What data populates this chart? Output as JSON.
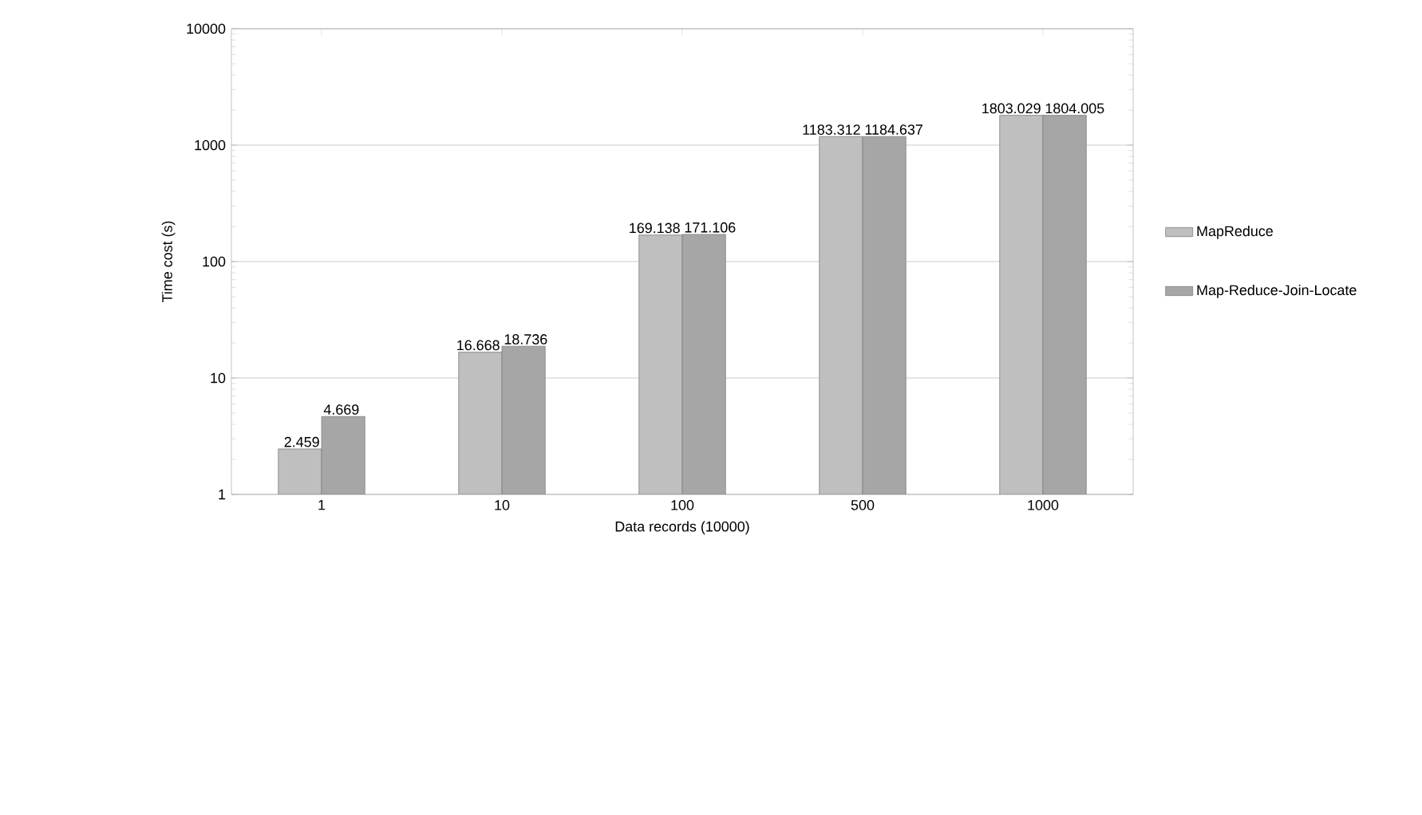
{
  "chart_data": {
    "type": "bar",
    "xlabel": "Data records (10000)",
    "ylabel": "Time cost (s)",
    "categories": [
      "1",
      "10",
      "100",
      "500",
      "1000"
    ],
    "series": [
      {
        "name": "MapReduce",
        "color": "#bfbfbf",
        "values": [
          2.459,
          16.668,
          169.138,
          1183.312,
          1803.029
        ],
        "value_labels": [
          "2.459",
          "16.668",
          "169.138",
          "1183.312",
          "1803.029"
        ]
      },
      {
        "name": "Map-Reduce-Join-Locate",
        "color": "#a6a6a6",
        "values": [
          4.669,
          18.736,
          171.106,
          1184.637,
          1804.005
        ],
        "value_labels": [
          "4.669",
          "18.736",
          "171.106",
          "1184.637",
          "1804.005"
        ]
      }
    ],
    "log": "y",
    "ylim": [
      1,
      10000
    ],
    "yticks": [
      1,
      10,
      100,
      1000,
      10000
    ],
    "grid": "y",
    "legend": "right"
  }
}
